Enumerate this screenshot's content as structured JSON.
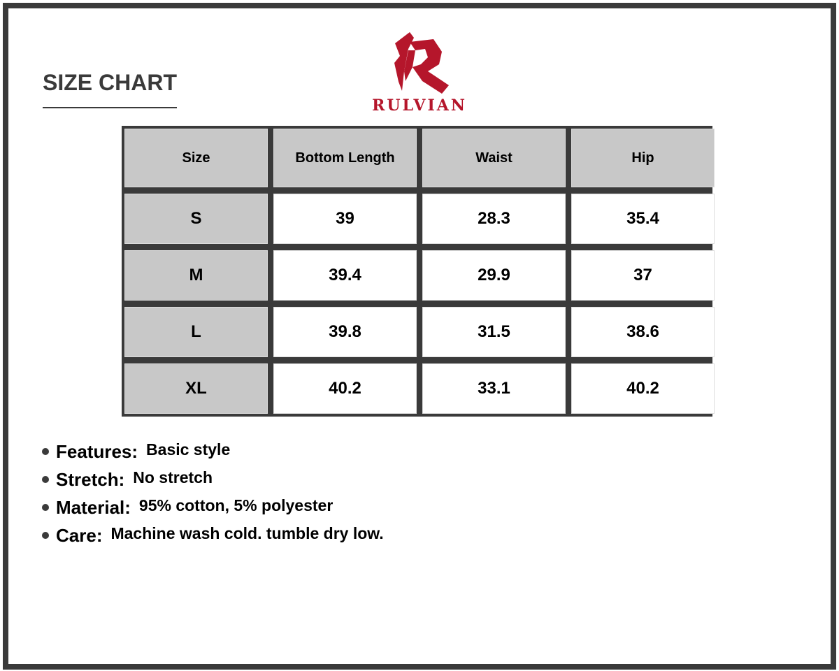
{
  "title": "SIZE CHART",
  "brand": {
    "name": "RULVIAN",
    "color": "#b5162b"
  },
  "table": {
    "headers": [
      "Size",
      "Bottom Length",
      "Waist",
      "Hip"
    ],
    "rows": [
      [
        "S",
        "39",
        "28.3",
        "35.4"
      ],
      [
        "M",
        "39.4",
        "29.9",
        "37"
      ],
      [
        "L",
        "39.8",
        "31.5",
        "38.6"
      ],
      [
        "XL",
        "40.2",
        "33.1",
        "40.2"
      ]
    ]
  },
  "features": [
    {
      "label": "Features:",
      "value": "Basic style"
    },
    {
      "label": "Stretch:",
      "value": "No stretch"
    },
    {
      "label": "Material:",
      "value": "95% cotton, 5% polyester"
    },
    {
      "label": "Care:",
      "value": "Machine wash cold. tumble dry low."
    }
  ]
}
